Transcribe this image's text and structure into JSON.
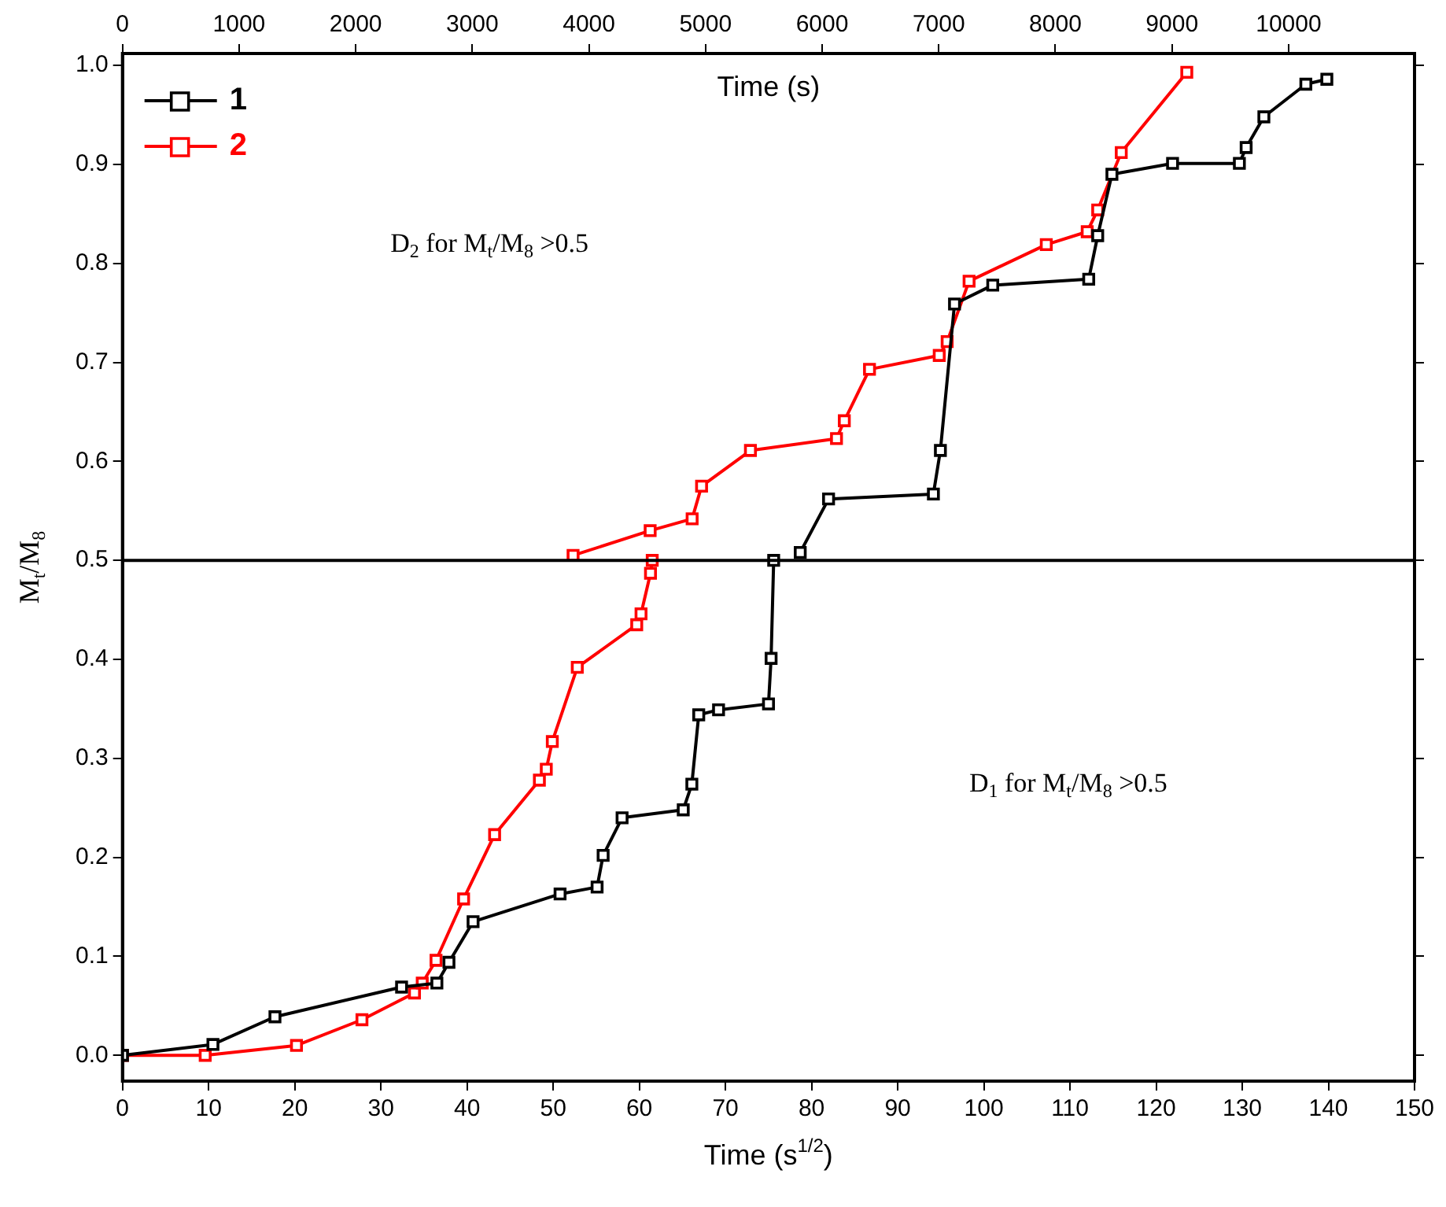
{
  "chart_data": {
    "type": "line",
    "xlabel": "Time (s$^{1/2}$)",
    "x2label": "Time (s)",
    "ylabel": "M$_{t}$/M$_{8}$",
    "xlim": [
      0,
      150
    ],
    "xticks": [
      0,
      10,
      20,
      30,
      40,
      50,
      60,
      70,
      80,
      90,
      100,
      110,
      120,
      130,
      140,
      150
    ],
    "x2lim": [
      0,
      11080
    ],
    "x2ticks": [
      0,
      1000,
      2000,
      3000,
      4000,
      5000,
      6000,
      7000,
      8000,
      9000,
      10000
    ],
    "ylim": [
      -0.026,
      1.012
    ],
    "yticks": [
      {
        "value": 0,
        "label": "0.0"
      },
      0.1,
      0.2,
      0.3,
      0.4,
      0.5,
      0.6,
      0.7,
      0.8,
      0.9,
      {
        "value": 1,
        "label": "1.0"
      }
    ],
    "marker": "square",
    "line_style": "solid",
    "grid": false,
    "legend": "top left",
    "ref_lines": [
      {
        "axis": "y",
        "value": 0.5,
        "color": "#000000"
      }
    ],
    "annotations": [
      "D$_{2}$ for M$_{t}$/M$_{8}$ >0.5",
      "D$_{1}$ for M$_{t}$/M$_{8}$ >0.5"
    ],
    "series": [
      {
        "name": "1",
        "color": "#000000",
        "x": [
          0,
          10.5,
          17.7,
          32.4,
          36.5,
          37.9,
          40.7,
          50.8,
          55.1,
          55.8,
          58.0,
          65.1,
          66.1,
          66.9,
          69.2,
          75.0,
          75.3,
          75.6
        ],
        "values": [
          0,
          0.011,
          0.039,
          0.069,
          0.073,
          0.094,
          0.135,
          0.163,
          0.17,
          0.202,
          0.24,
          0.248,
          0.274,
          0.344,
          0.349,
          0.355,
          0.401,
          0.5
        ]
      },
      {
        "name": "2",
        "color": "#ff0000",
        "x": [
          0,
          9.6,
          20.2,
          27.8,
          33.9,
          34.8,
          36.4,
          39.6,
          43.2,
          48.4,
          49.2,
          49.9,
          52.8,
          59.7,
          60.2,
          61.3,
          61.5
        ],
        "values": [
          0,
          0,
          0.01,
          0.036,
          0.063,
          0.073,
          0.096,
          0.158,
          0.223,
          0.278,
          0.289,
          0.317,
          0.392,
          0.435,
          0.446,
          0.487,
          0.5
        ]
      },
      {
        "color": "#000000",
        "axis": "x2",
        "x": [
          5812,
          6055,
          6954,
          7014,
          7135,
          7463,
          8286,
          8363,
          8485,
          9005,
          9578,
          9636,
          9788,
          10148,
          10328
        ],
        "values": [
          0.508,
          0.562,
          0.567,
          0.611,
          0.759,
          0.778,
          0.784,
          0.828,
          0.89,
          0.901,
          0.901,
          0.917,
          0.948,
          0.981,
          0.986
        ]
      },
      {
        "color": "#ff0000",
        "axis": "x2",
        "x": [
          3864,
          4525,
          4885,
          4966,
          5385,
          6123,
          6190,
          6406,
          7004,
          7072,
          7260,
          7922,
          8273,
          8363,
          8565,
          9127
        ],
        "values": [
          0.505,
          0.53,
          0.542,
          0.575,
          0.611,
          0.623,
          0.641,
          0.693,
          0.707,
          0.721,
          0.782,
          0.819,
          0.832,
          0.854,
          0.912,
          0.993
        ]
      }
    ]
  }
}
